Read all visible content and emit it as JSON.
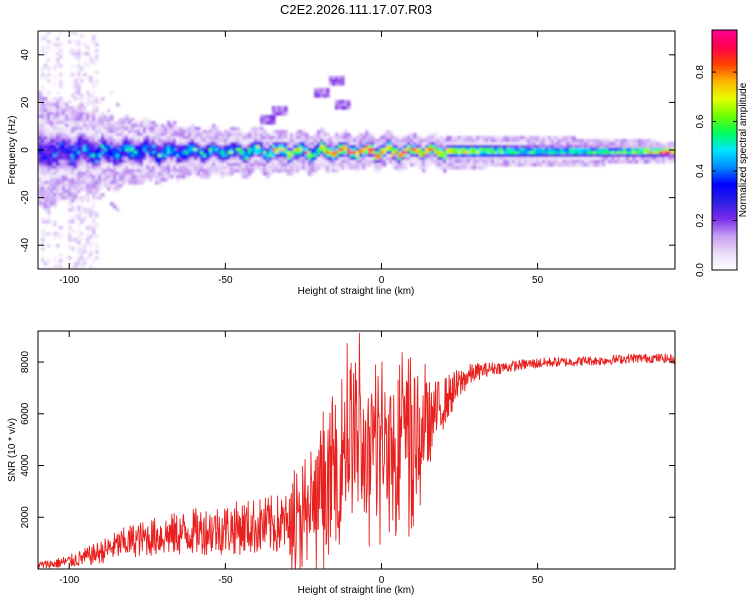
{
  "title": "C2E2.2026.111.17.07.R03",
  "colors": {
    "snr_line": "#e8201e",
    "background": "#ffffff",
    "axis": "#000000",
    "colormap": [
      "#ffffff",
      "#e9dcf9",
      "#c69cf2",
      "#7a2bea",
      "#2a1ee6",
      "#0000ff",
      "#008cff",
      "#00e6ff",
      "#00ff5a",
      "#6fff00",
      "#e6ff00",
      "#ffb400",
      "#ff4000",
      "#ff0050",
      "#ff0090"
    ]
  },
  "chart_data": [
    {
      "id": "spectrogram",
      "type": "heatmap",
      "xlabel": "Height of straight line (km)",
      "ylabel": "Frequency (Hz)",
      "xlim": [
        -110,
        94
      ],
      "ylim": [
        -50,
        50
      ],
      "xticks": [
        -100,
        -50,
        0,
        50
      ],
      "yticks": [
        -40,
        -20,
        0,
        20,
        40
      ],
      "colorbar": {
        "label": "Normalized spectral amplitude",
        "range": [
          0,
          0.97
        ],
        "ticks": [
          0.0,
          0.2,
          0.4,
          0.6,
          0.8
        ]
      },
      "description_points": {
        "center_frequency_hz": 0,
        "band_halfwidth_hz_at_x": [
          [
            -110,
            14
          ],
          [
            -90,
            9
          ],
          [
            -60,
            6
          ],
          [
            -30,
            5
          ],
          [
            0,
            4
          ],
          [
            30,
            4
          ],
          [
            60,
            3.5
          ],
          [
            80,
            3
          ],
          [
            94,
            2.5
          ]
        ],
        "peak_amplitude_at_x": [
          [
            -110,
            0.35
          ],
          [
            -80,
            0.5
          ],
          [
            -50,
            0.55
          ],
          [
            -30,
            0.78
          ],
          [
            -10,
            0.85
          ],
          [
            0,
            0.95
          ],
          [
            20,
            0.75
          ],
          [
            40,
            0.6
          ],
          [
            60,
            0.58
          ],
          [
            80,
            0.65
          ],
          [
            90,
            0.95
          ]
        ],
        "side_feature_at_x": [
          [
            -37,
            13
          ],
          [
            -33,
            17
          ],
          [
            -20,
            25
          ],
          [
            -15,
            30
          ],
          [
            -13,
            20
          ]
        ],
        "noise_columns_x": [
          -108,
          -104,
          -99,
          -96,
          -93
        ]
      }
    },
    {
      "id": "snr",
      "type": "line",
      "xlabel": "Height of straight line (km)",
      "ylabel": "SNR (10 * v/v)",
      "xlim": [
        -110,
        94
      ],
      "ylim": [
        0,
        9200
      ],
      "xticks": [
        -100,
        -50,
        0,
        50
      ],
      "yticks": [
        2000,
        4000,
        6000,
        8000
      ],
      "series": [
        {
          "name": "SNR",
          "x": [
            -110,
            -105,
            -100,
            -95,
            -90,
            -85,
            -80,
            -75,
            -70,
            -65,
            -60,
            -55,
            -50,
            -45,
            -40,
            -35,
            -30,
            -27,
            -24,
            -21,
            -18,
            -15,
            -12,
            -9,
            -6,
            -3,
            0,
            3,
            6,
            9,
            12,
            15,
            18,
            21,
            24,
            27,
            30,
            35,
            40,
            45,
            50,
            55,
            60,
            65,
            70,
            75,
            80,
            85,
            90,
            94
          ],
          "y": [
            150,
            200,
            300,
            450,
            650,
            900,
            1100,
            1200,
            1300,
            1350,
            1450,
            1500,
            1550,
            1600,
            1650,
            1700,
            1750,
            1800,
            2000,
            2600,
            3300,
            4200,
            4900,
            5200,
            4500,
            4300,
            5000,
            5100,
            5000,
            5200,
            5500,
            5600,
            6100,
            6600,
            7000,
            7400,
            7600,
            7750,
            7800,
            7900,
            7950,
            8000,
            8000,
            8050,
            8050,
            8100,
            8150,
            8150,
            8150,
            8100
          ],
          "spread": [
            150,
            180,
            250,
            350,
            450,
            550,
            650,
            700,
            800,
            850,
            900,
            950,
            1000,
            1050,
            1100,
            1150,
            1200,
            1300,
            1500,
            1900,
            2400,
            2800,
            3000,
            3200,
            2600,
            2200,
            2400,
            2500,
            2600,
            2300,
            2000,
            1700,
            1200,
            900,
            700,
            500,
            350,
            250,
            220,
            200,
            200,
            190,
            180,
            180,
            180,
            180,
            180,
            180,
            180,
            180
          ]
        }
      ]
    }
  ]
}
